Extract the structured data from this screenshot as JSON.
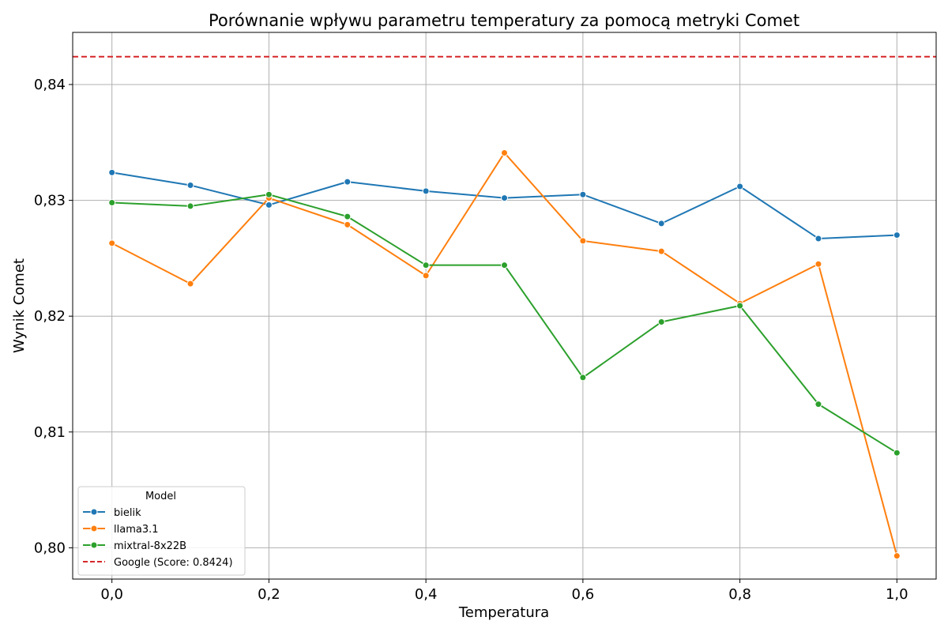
{
  "chart_data": {
    "type": "line",
    "title": "Porównanie wpływu parametru temperatury za pomocą metryki Comet",
    "xlabel": "Temperatura",
    "ylabel": "Wynik Comet",
    "x": [
      0.0,
      0.1,
      0.2,
      0.3,
      0.4,
      0.5,
      0.6,
      0.7,
      0.8,
      0.9,
      1.0
    ],
    "xlim": [
      -0.05,
      1.05
    ],
    "ylim": [
      0.7973,
      0.8445
    ],
    "xticks": [
      0.0,
      0.2,
      0.4,
      0.6,
      0.8,
      1.0
    ],
    "xtick_labels": [
      "0,0",
      "0,2",
      "0,4",
      "0,6",
      "0,8",
      "1,0"
    ],
    "yticks": [
      0.8,
      0.81,
      0.82,
      0.83,
      0.84
    ],
    "ytick_labels": [
      "0,80",
      "0,81",
      "0,82",
      "0,83",
      "0,84"
    ],
    "grid": true,
    "legend_title": "Model",
    "legend_position": "lower-left",
    "series": [
      {
        "name": "bielik",
        "color": "#1f77b4",
        "values": [
          0.8324,
          0.8313,
          0.8296,
          0.8316,
          0.8308,
          0.8302,
          0.8305,
          0.828,
          0.8312,
          0.8267,
          0.827
        ]
      },
      {
        "name": "llama3.1",
        "color": "#ff7f0e",
        "values": [
          0.8263,
          0.8228,
          0.8302,
          0.8279,
          0.8235,
          0.8341,
          0.8265,
          0.8256,
          0.8211,
          0.8245,
          0.7993
        ]
      },
      {
        "name": "mixtral-8x22B",
        "color": "#2ca02c",
        "values": [
          0.8298,
          0.8295,
          0.8305,
          0.8286,
          0.8244,
          0.8244,
          0.8147,
          0.8195,
          0.8209,
          0.8124,
          0.8082
        ]
      }
    ],
    "reference_line": {
      "name": "Google (Score: 0.8424)",
      "value": 0.8424,
      "color": "#d62728",
      "style": "dashed"
    }
  }
}
